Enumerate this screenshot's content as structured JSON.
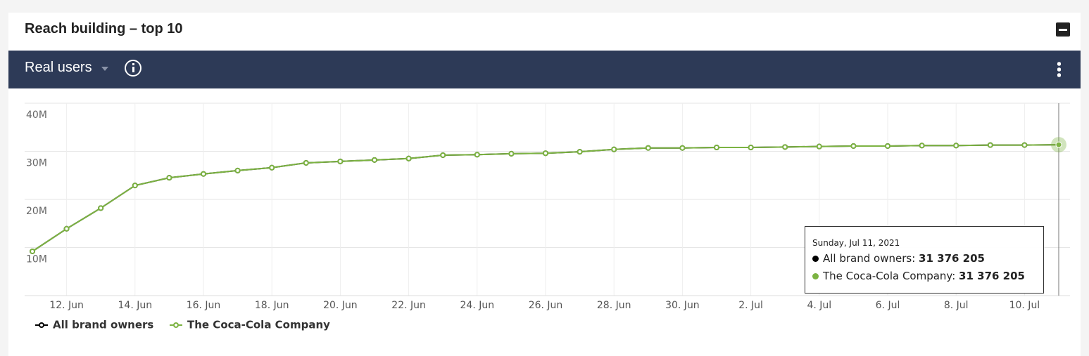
{
  "header": {
    "title": "Reach building – top 10",
    "metric": "Real users"
  },
  "chart_data": {
    "type": "line",
    "categories": [
      null,
      "12. Jun",
      null,
      "14. Jun",
      null,
      "16. Jun",
      null,
      "18. Jun",
      null,
      "20. Jun",
      null,
      "22. Jun",
      null,
      "24. Jun",
      null,
      "26. Jun",
      null,
      "28. Jun",
      null,
      "30. Jun",
      null,
      "2. Jul",
      null,
      "4. Jul",
      null,
      "6. Jul",
      null,
      "8. Jul",
      null,
      "10. Jul",
      null
    ],
    "series": [
      {
        "name": "All brand owners",
        "color": "#000000",
        "values": [
          9200000,
          13900000,
          18200000,
          22900000,
          24500000,
          25300000,
          26000000,
          26600000,
          27600000,
          27900000,
          28200000,
          28500000,
          29200000,
          29300000,
          29500000,
          29600000,
          29900000,
          30400000,
          30700000,
          30700000,
          30800000,
          30800000,
          30900000,
          31000000,
          31100000,
          31100000,
          31200000,
          31200000,
          31300000,
          31300000,
          31376205
        ]
      },
      {
        "name": "The Coca-Cola Company",
        "color": "#7cb342",
        "values": [
          9200000,
          13900000,
          18200000,
          22900000,
          24500000,
          25300000,
          26000000,
          26600000,
          27600000,
          27900000,
          28200000,
          28500000,
          29200000,
          29300000,
          29500000,
          29600000,
          29900000,
          30400000,
          30700000,
          30700000,
          30800000,
          30800000,
          30900000,
          31000000,
          31100000,
          31100000,
          31200000,
          31200000,
          31300000,
          31300000,
          31376205
        ]
      }
    ],
    "ylim": [
      0,
      40000000
    ],
    "yticks": [
      {
        "value": 10000000,
        "label": "10M"
      },
      {
        "value": 20000000,
        "label": "20M"
      },
      {
        "value": 30000000,
        "label": "30M"
      },
      {
        "value": 40000000,
        "label": "40M"
      }
    ],
    "grid": true,
    "tooltip": {
      "title": "Sunday, Jul 11, 2021",
      "index": 30,
      "value_labels": [
        "31 376 205",
        "31 376 205"
      ]
    }
  }
}
